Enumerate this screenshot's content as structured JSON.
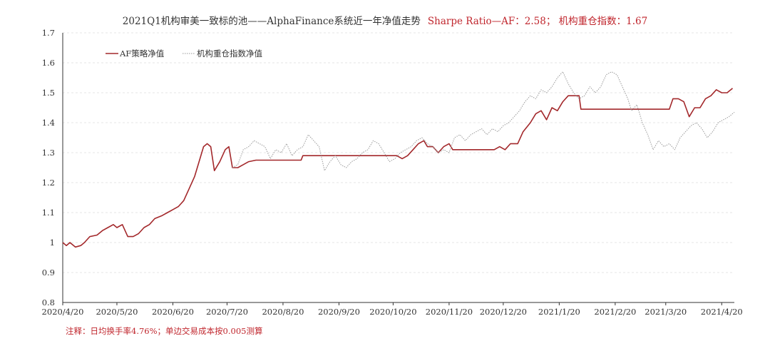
{
  "title": {
    "main": "2021Q1机构审美一致标的池——AlphaFinance系统近一年净值走势",
    "sharpe": "Sharpe Ratio—AF：2.58；  机构重仓指数：1.67"
  },
  "footnote": "注释：日均换手率4.76%；单边交易成本按0.005测算",
  "colors": {
    "af": "#a3282b",
    "index": "#9a9a9a",
    "sharpe_text": "#c0262d",
    "axis": "#333333",
    "grid": "#dddddd"
  },
  "chart_data": {
    "type": "line",
    "title": "2021Q1机构审美一致标的池——AlphaFinance系统近一年净值走势",
    "ylim": [
      0.8,
      1.7
    ],
    "yticks": [
      "0.8",
      "0.9",
      "1",
      "1.1",
      "1.2",
      "1.3",
      "1.4",
      "1.5",
      "1.6",
      "1.7"
    ],
    "xlim": [
      "2020-04-20",
      "2021-04-27"
    ],
    "xticks": [
      "2020/4/20",
      "2020/5/20",
      "2020/6/20",
      "2020/7/20",
      "2020/8/20",
      "2020/9/20",
      "2020/10/20",
      "2020/11/20",
      "2020/12/20",
      "2021/1/20",
      "2021/2/20",
      "2021/3/20",
      "2021/4/20"
    ],
    "grid": true,
    "legend_position": "top-left",
    "series": [
      {
        "name": "AF策略净值",
        "style": "solid",
        "points": [
          [
            "2020-04-20",
            1.0
          ],
          [
            "2020-04-22",
            0.99
          ],
          [
            "2020-04-24",
            1.0
          ],
          [
            "2020-04-27",
            0.985
          ],
          [
            "2020-04-30",
            0.99
          ],
          [
            "2020-05-02",
            1.0
          ],
          [
            "2020-05-05",
            1.02
          ],
          [
            "2020-05-09",
            1.025
          ],
          [
            "2020-05-12",
            1.04
          ],
          [
            "2020-05-15",
            1.05
          ],
          [
            "2020-05-18",
            1.06
          ],
          [
            "2020-05-20",
            1.05
          ],
          [
            "2020-05-23",
            1.06
          ],
          [
            "2020-05-26",
            1.02
          ],
          [
            "2020-05-29",
            1.02
          ],
          [
            "2020-06-01",
            1.03
          ],
          [
            "2020-06-04",
            1.05
          ],
          [
            "2020-06-07",
            1.06
          ],
          [
            "2020-06-10",
            1.08
          ],
          [
            "2020-06-14",
            1.09
          ],
          [
            "2020-06-17",
            1.1
          ],
          [
            "2020-06-20",
            1.11
          ],
          [
            "2020-06-23",
            1.12
          ],
          [
            "2020-06-26",
            1.14
          ],
          [
            "2020-06-29",
            1.18
          ],
          [
            "2020-07-02",
            1.22
          ],
          [
            "2020-07-05",
            1.28
          ],
          [
            "2020-07-07",
            1.32
          ],
          [
            "2020-07-09",
            1.33
          ],
          [
            "2020-07-11",
            1.32
          ],
          [
            "2020-07-13",
            1.24
          ],
          [
            "2020-07-16",
            1.27
          ],
          [
            "2020-07-19",
            1.31
          ],
          [
            "2020-07-21",
            1.32
          ],
          [
            "2020-07-23",
            1.25
          ],
          [
            "2020-07-26",
            1.25
          ],
          [
            "2020-07-29",
            1.26
          ],
          [
            "2020-08-01",
            1.27
          ],
          [
            "2020-08-05",
            1.275
          ],
          [
            "2020-08-20",
            1.275
          ],
          [
            "2020-08-30",
            1.275
          ],
          [
            "2020-08-31",
            1.29
          ],
          [
            "2020-09-15",
            1.29
          ],
          [
            "2020-10-01",
            1.29
          ],
          [
            "2020-10-22",
            1.29
          ],
          [
            "2020-10-25",
            1.28
          ],
          [
            "2020-10-28",
            1.29
          ],
          [
            "2020-10-31",
            1.31
          ],
          [
            "2020-11-03",
            1.33
          ],
          [
            "2020-11-06",
            1.34
          ],
          [
            "2020-11-08",
            1.32
          ],
          [
            "2020-11-11",
            1.32
          ],
          [
            "2020-11-14",
            1.3
          ],
          [
            "2020-11-17",
            1.32
          ],
          [
            "2020-11-20",
            1.33
          ],
          [
            "2020-11-22",
            1.31
          ],
          [
            "2020-11-25",
            1.31
          ],
          [
            "2020-12-05",
            1.31
          ],
          [
            "2020-12-15",
            1.31
          ],
          [
            "2020-12-18",
            1.32
          ],
          [
            "2020-12-21",
            1.31
          ],
          [
            "2020-12-24",
            1.33
          ],
          [
            "2020-12-28",
            1.33
          ],
          [
            "2020-12-31",
            1.37
          ],
          [
            "2021-01-04",
            1.4
          ],
          [
            "2021-01-07",
            1.43
          ],
          [
            "2021-01-10",
            1.44
          ],
          [
            "2021-01-13",
            1.41
          ],
          [
            "2021-01-16",
            1.45
          ],
          [
            "2021-01-19",
            1.44
          ],
          [
            "2021-01-22",
            1.47
          ],
          [
            "2021-01-25",
            1.49
          ],
          [
            "2021-01-28",
            1.49
          ],
          [
            "2021-01-31",
            1.49
          ],
          [
            "2021-02-01",
            1.445
          ],
          [
            "2021-02-20",
            1.445
          ],
          [
            "2021-03-10",
            1.445
          ],
          [
            "2021-03-22",
            1.445
          ],
          [
            "2021-03-24",
            1.48
          ],
          [
            "2021-03-27",
            1.48
          ],
          [
            "2021-03-30",
            1.47
          ],
          [
            "2021-04-02",
            1.42
          ],
          [
            "2021-04-05",
            1.45
          ],
          [
            "2021-04-08",
            1.45
          ],
          [
            "2021-04-11",
            1.48
          ],
          [
            "2021-04-14",
            1.49
          ],
          [
            "2021-04-17",
            1.51
          ],
          [
            "2021-04-20",
            1.5
          ],
          [
            "2021-04-23",
            1.5
          ],
          [
            "2021-04-26",
            1.515
          ]
        ]
      },
      {
        "name": "机构重仓指数净值",
        "style": "dotted",
        "start": "2020-07-23",
        "points": [
          [
            "2020-07-23",
            1.25
          ],
          [
            "2020-07-26",
            1.26
          ],
          [
            "2020-07-29",
            1.31
          ],
          [
            "2020-08-01",
            1.32
          ],
          [
            "2020-08-04",
            1.34
          ],
          [
            "2020-08-07",
            1.33
          ],
          [
            "2020-08-10",
            1.32
          ],
          [
            "2020-08-13",
            1.28
          ],
          [
            "2020-08-16",
            1.31
          ],
          [
            "2020-08-19",
            1.3
          ],
          [
            "2020-08-22",
            1.33
          ],
          [
            "2020-08-25",
            1.29
          ],
          [
            "2020-08-28",
            1.31
          ],
          [
            "2020-08-31",
            1.32
          ],
          [
            "2020-09-03",
            1.36
          ],
          [
            "2020-09-06",
            1.34
          ],
          [
            "2020-09-09",
            1.32
          ],
          [
            "2020-09-12",
            1.24
          ],
          [
            "2020-09-15",
            1.27
          ],
          [
            "2020-09-18",
            1.29
          ],
          [
            "2020-09-21",
            1.26
          ],
          [
            "2020-09-24",
            1.25
          ],
          [
            "2020-09-27",
            1.27
          ],
          [
            "2020-09-30",
            1.28
          ],
          [
            "2020-10-03",
            1.3
          ],
          [
            "2020-10-06",
            1.31
          ],
          [
            "2020-10-09",
            1.34
          ],
          [
            "2020-10-12",
            1.33
          ],
          [
            "2020-10-15",
            1.3
          ],
          [
            "2020-10-18",
            1.27
          ],
          [
            "2020-10-21",
            1.28
          ],
          [
            "2020-10-24",
            1.3
          ],
          [
            "2020-10-27",
            1.31
          ],
          [
            "2020-10-30",
            1.32
          ],
          [
            "2020-11-02",
            1.34
          ],
          [
            "2020-11-05",
            1.35
          ],
          [
            "2020-11-08",
            1.33
          ],
          [
            "2020-11-11",
            1.32
          ],
          [
            "2020-11-14",
            1.3
          ],
          [
            "2020-11-17",
            1.31
          ],
          [
            "2020-11-20",
            1.3
          ],
          [
            "2020-11-23",
            1.35
          ],
          [
            "2020-11-26",
            1.36
          ],
          [
            "2020-11-29",
            1.34
          ],
          [
            "2020-12-02",
            1.36
          ],
          [
            "2020-12-05",
            1.37
          ],
          [
            "2020-12-08",
            1.38
          ],
          [
            "2020-12-11",
            1.36
          ],
          [
            "2020-12-14",
            1.38
          ],
          [
            "2020-12-17",
            1.37
          ],
          [
            "2020-12-20",
            1.39
          ],
          [
            "2020-12-23",
            1.4
          ],
          [
            "2020-12-26",
            1.42
          ],
          [
            "2020-12-29",
            1.44
          ],
          [
            "2021-01-01",
            1.47
          ],
          [
            "2021-01-04",
            1.49
          ],
          [
            "2021-01-07",
            1.48
          ],
          [
            "2021-01-10",
            1.51
          ],
          [
            "2021-01-13",
            1.5
          ],
          [
            "2021-01-16",
            1.52
          ],
          [
            "2021-01-19",
            1.55
          ],
          [
            "2021-01-22",
            1.57
          ],
          [
            "2021-01-25",
            1.53
          ],
          [
            "2021-01-28",
            1.5
          ],
          [
            "2021-01-31",
            1.48
          ],
          [
            "2021-02-03",
            1.49
          ],
          [
            "2021-02-06",
            1.52
          ],
          [
            "2021-02-09",
            1.5
          ],
          [
            "2021-02-12",
            1.52
          ],
          [
            "2021-02-15",
            1.56
          ],
          [
            "2021-02-18",
            1.57
          ],
          [
            "2021-02-21",
            1.56
          ],
          [
            "2021-02-24",
            1.52
          ],
          [
            "2021-02-27",
            1.48
          ],
          [
            "2021-03-01",
            1.44
          ],
          [
            "2021-03-04",
            1.46
          ],
          [
            "2021-03-07",
            1.4
          ],
          [
            "2021-03-10",
            1.36
          ],
          [
            "2021-03-13",
            1.31
          ],
          [
            "2021-03-16",
            1.34
          ],
          [
            "2021-03-19",
            1.32
          ],
          [
            "2021-03-22",
            1.33
          ],
          [
            "2021-03-25",
            1.31
          ],
          [
            "2021-03-28",
            1.35
          ],
          [
            "2021-03-31",
            1.37
          ],
          [
            "2021-04-03",
            1.39
          ],
          [
            "2021-04-06",
            1.4
          ],
          [
            "2021-04-09",
            1.38
          ],
          [
            "2021-04-12",
            1.35
          ],
          [
            "2021-04-15",
            1.37
          ],
          [
            "2021-04-18",
            1.4
          ],
          [
            "2021-04-21",
            1.41
          ],
          [
            "2021-04-24",
            1.42
          ],
          [
            "2021-04-27",
            1.435
          ]
        ]
      }
    ]
  }
}
